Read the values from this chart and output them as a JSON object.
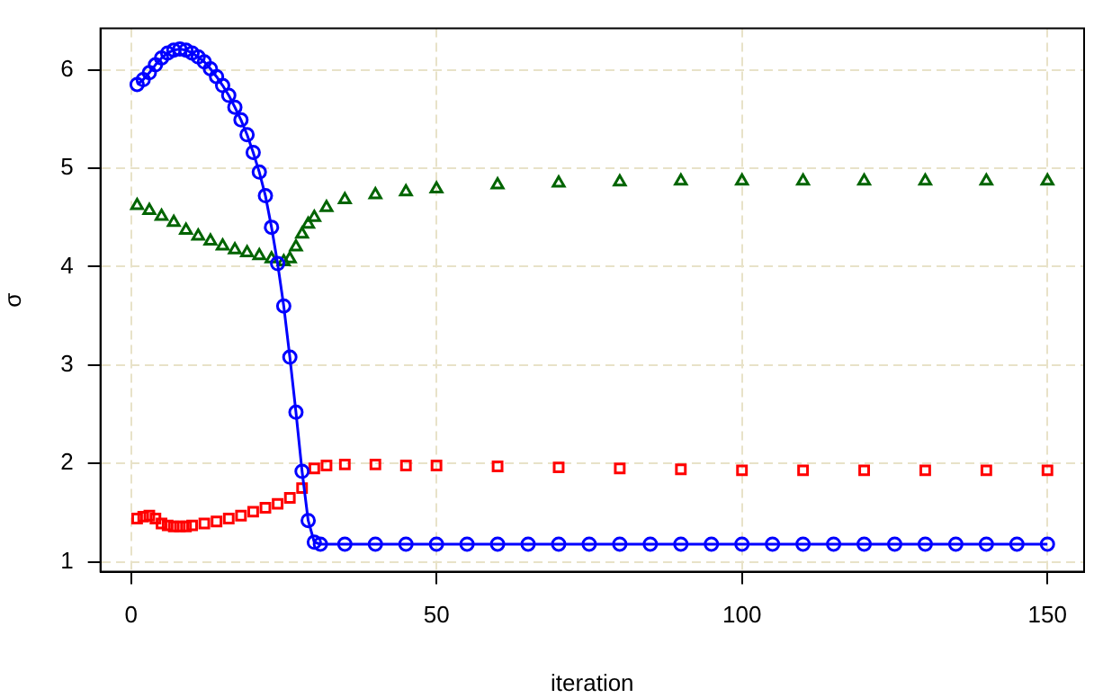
{
  "chart_data": {
    "type": "line",
    "xlabel": "iteration",
    "ylabel": "σ",
    "xlim": [
      -5,
      156
    ],
    "ylim": [
      0.9,
      6.42
    ],
    "xticks": [
      0,
      50,
      100,
      150
    ],
    "yticks": [
      1,
      2,
      3,
      4,
      5,
      6
    ],
    "grid": true,
    "legend": false,
    "series": [
      {
        "type": "line",
        "color": "#0000ff",
        "marker": "circle",
        "line_style": "solid",
        "x": [
          1,
          2,
          3,
          4,
          5,
          6,
          7,
          8,
          9,
          10,
          11,
          12,
          13,
          14,
          15,
          16,
          17,
          18,
          19,
          20,
          21,
          22,
          23,
          24,
          25,
          26,
          27,
          28,
          29,
          30,
          31,
          35,
          40,
          45,
          50,
          55,
          60,
          65,
          70,
          75,
          80,
          85,
          90,
          95,
          100,
          105,
          110,
          115,
          120,
          125,
          130,
          135,
          140,
          145,
          150
        ],
        "values": [
          5.85,
          5.9,
          5.97,
          6.05,
          6.12,
          6.17,
          6.2,
          6.21,
          6.2,
          6.17,
          6.13,
          6.08,
          6.01,
          5.93,
          5.84,
          5.74,
          5.62,
          5.49,
          5.34,
          5.16,
          4.96,
          4.72,
          4.4,
          4.03,
          3.6,
          3.08,
          2.52,
          1.92,
          1.42,
          1.2,
          1.18,
          1.18,
          1.18,
          1.18,
          1.18,
          1.18,
          1.18,
          1.18,
          1.18,
          1.18,
          1.18,
          1.18,
          1.18,
          1.18,
          1.18,
          1.18,
          1.18,
          1.18,
          1.18,
          1.18,
          1.18,
          1.18,
          1.18,
          1.18,
          1.18
        ]
      },
      {
        "type": "scatter",
        "color": "#ff0000",
        "marker": "square",
        "x": [
          1,
          2,
          3,
          4,
          5,
          6,
          7,
          8,
          9,
          10,
          12,
          14,
          16,
          18,
          20,
          22,
          24,
          26,
          28,
          29,
          30,
          32,
          35,
          40,
          45,
          50,
          60,
          70,
          80,
          90,
          100,
          110,
          120,
          130,
          140,
          150
        ],
        "values": [
          1.44,
          1.46,
          1.47,
          1.44,
          1.39,
          1.37,
          1.36,
          1.36,
          1.36,
          1.37,
          1.39,
          1.41,
          1.44,
          1.47,
          1.51,
          1.55,
          1.59,
          1.65,
          1.75,
          null,
          1.95,
          1.98,
          1.99,
          1.99,
          1.98,
          1.98,
          1.97,
          1.96,
          1.95,
          1.94,
          1.93,
          1.93,
          1.93,
          1.93,
          1.93,
          1.93
        ]
      },
      {
        "type": "scatter",
        "color": "#006400",
        "marker": "triangle",
        "x": [
          1,
          3,
          5,
          7,
          9,
          11,
          13,
          15,
          17,
          19,
          21,
          23,
          25,
          26,
          27,
          28,
          29,
          30,
          32,
          35,
          40,
          45,
          50,
          60,
          70,
          80,
          90,
          100,
          110,
          120,
          130,
          140,
          150
        ],
        "values": [
          4.62,
          4.57,
          4.51,
          4.45,
          4.37,
          4.31,
          4.26,
          4.21,
          4.17,
          4.14,
          4.11,
          4.08,
          4.05,
          4.08,
          4.2,
          4.33,
          4.43,
          4.5,
          4.6,
          4.68,
          4.73,
          4.76,
          4.79,
          4.83,
          4.85,
          4.86,
          4.87,
          4.87,
          4.87,
          4.87,
          4.87,
          4.87,
          4.87
        ]
      }
    ]
  }
}
